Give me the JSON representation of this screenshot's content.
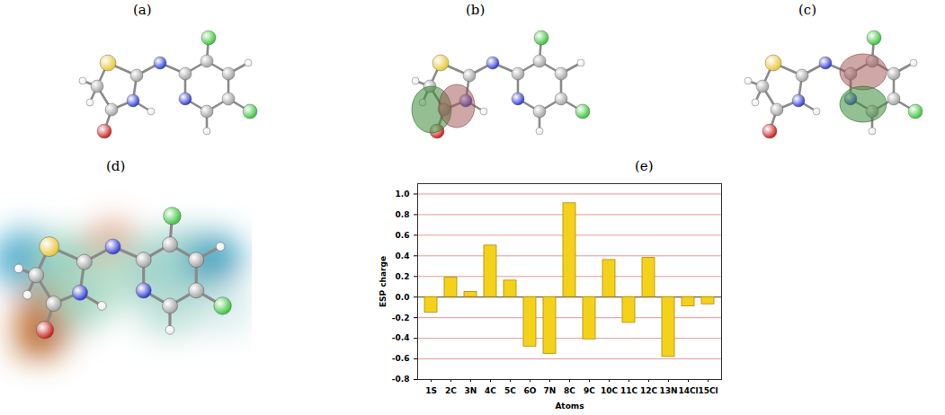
{
  "panel_labels": [
    "(a)",
    "(b)",
    "(c)",
    "(d)",
    "(e)"
  ],
  "chart_data": {
    "type": "bar",
    "x_label": "Atoms",
    "y_label": "ESP charge",
    "categories": [
      "1S",
      "2C",
      "3N",
      "4C",
      "5C",
      "6O",
      "7N",
      "8C",
      "9C",
      "10C",
      "11C",
      "12C",
      "13N",
      "14Cl",
      "15Cl"
    ],
    "values": [
      -0.15,
      0.19,
      0.05,
      0.5,
      0.16,
      -0.48,
      -0.55,
      0.91,
      -0.41,
      0.36,
      -0.25,
      0.38,
      -0.58,
      -0.09,
      -0.07
    ],
    "color": "#f5d21a",
    "ylim": [
      -0.8,
      1.1
    ],
    "yticks": [
      -0.8,
      -0.6,
      -0.4,
      -0.2,
      {
        "value": 0,
        "label": "0.0"
      },
      0.2,
      0.4,
      0.6,
      0.8,
      {
        "value": 1,
        "label": "1.0"
      }
    ],
    "grid": true
  }
}
